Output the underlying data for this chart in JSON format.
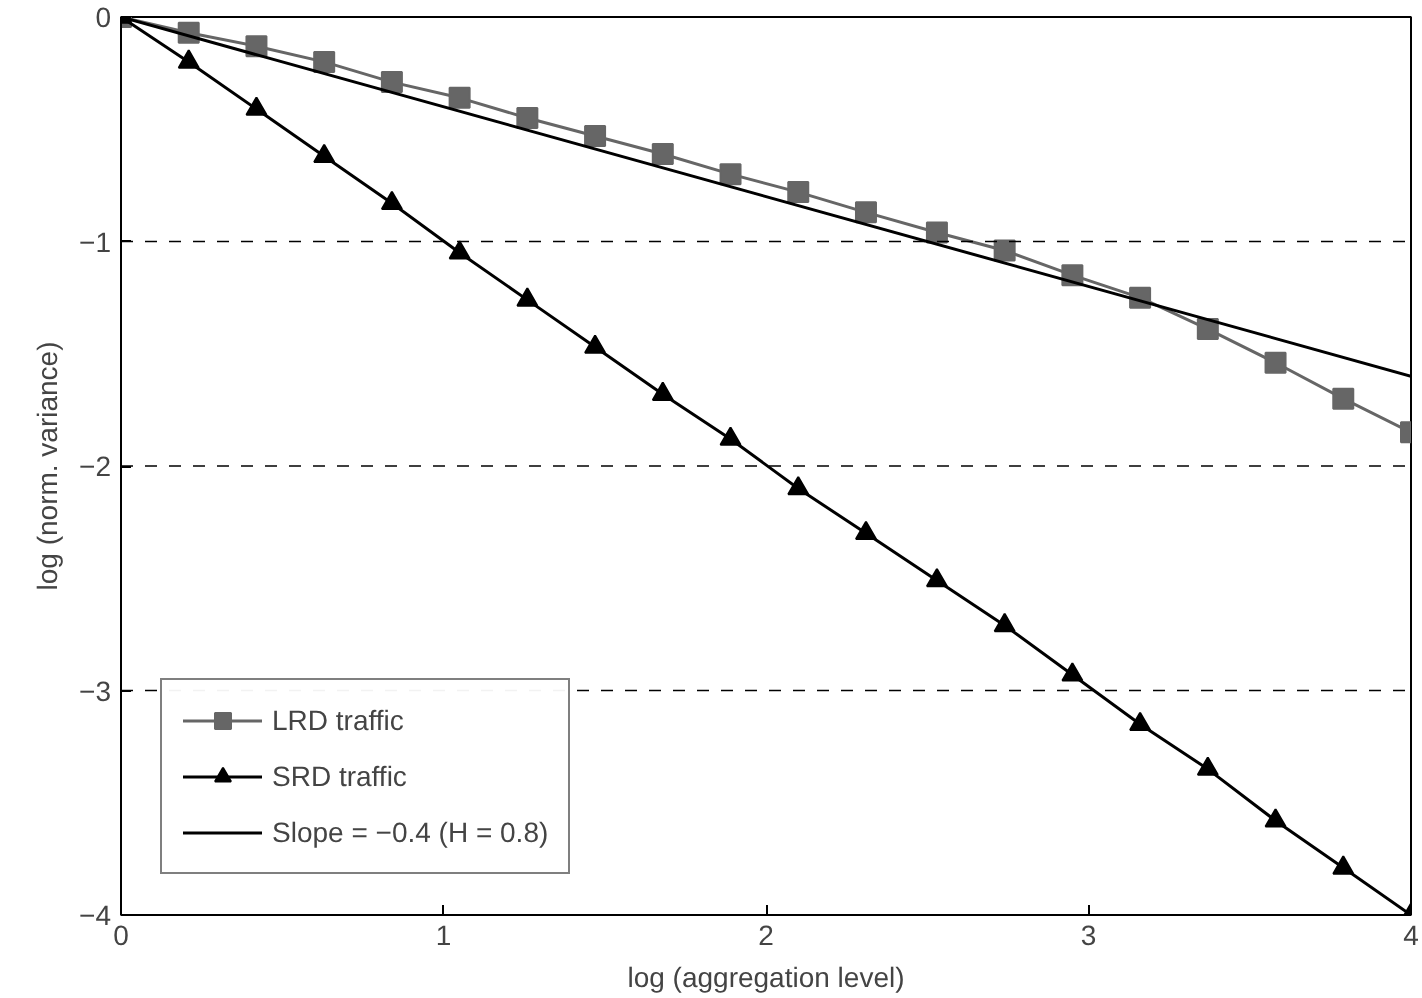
{
  "chart_data": {
    "type": "line",
    "xlabel": "log (aggregation level)",
    "ylabel": "log (norm. variance)",
    "xlim": [
      0,
      4
    ],
    "ylim": [
      -4,
      0
    ],
    "xticks": [
      0,
      1,
      2,
      3,
      4
    ],
    "yticks": [
      {
        "value": -4,
        "label": "−4"
      },
      {
        "value": -3,
        "label": "−3"
      },
      {
        "value": -2,
        "label": "−2"
      },
      {
        "value": -1,
        "label": "−1"
      },
      {
        "value": 0,
        "label": "0"
      }
    ],
    "grid": false,
    "legend": "bottom left",
    "series": [
      {
        "name": "LRD traffic",
        "color": "#666666",
        "marker": "square",
        "x": [
          0,
          0.21,
          0.42,
          0.63,
          0.84,
          1.05,
          1.26,
          1.47,
          1.68,
          1.89,
          2.1,
          2.31,
          2.53,
          2.74,
          2.95,
          3.16,
          3.37,
          3.58,
          3.79,
          4.0
        ],
        "values": [
          0,
          -0.07,
          -0.13,
          -0.2,
          -0.29,
          -0.36,
          -0.45,
          -0.53,
          -0.61,
          -0.7,
          -0.78,
          -0.87,
          -0.96,
          -1.04,
          -1.15,
          -1.25,
          -1.39,
          -1.54,
          -1.7,
          -1.85
        ]
      },
      {
        "name": "SRD traffic",
        "color": "#000000",
        "marker": "triangle",
        "x": [
          0,
          0.21,
          0.42,
          0.63,
          0.84,
          1.05,
          1.26,
          1.47,
          1.68,
          1.89,
          2.1,
          2.31,
          2.53,
          2.74,
          2.95,
          3.16,
          3.37,
          3.58,
          3.79,
          4.0
        ],
        "values": [
          0,
          -0.2,
          -0.41,
          -0.62,
          -0.83,
          -1.05,
          -1.26,
          -1.47,
          -1.68,
          -1.88,
          -2.1,
          -2.3,
          -2.51,
          -2.71,
          -2.93,
          -3.15,
          -3.35,
          -3.58,
          -3.79,
          -4.0
        ]
      },
      {
        "name": "Slope = −0.4 (H = 0.8)",
        "color": "#000000",
        "marker": "none",
        "x": [
          0,
          4
        ],
        "values": [
          0,
          -1.6
        ]
      }
    ],
    "ref_lines": [
      {
        "axis": "y",
        "value": -1,
        "color": "#000000",
        "line_style": "dashed"
      },
      {
        "axis": "y",
        "value": -2,
        "color": "#000000",
        "line_style": "dashed"
      },
      {
        "axis": "y",
        "value": -3,
        "color": "#000000",
        "line_style": "dashed"
      }
    ]
  }
}
